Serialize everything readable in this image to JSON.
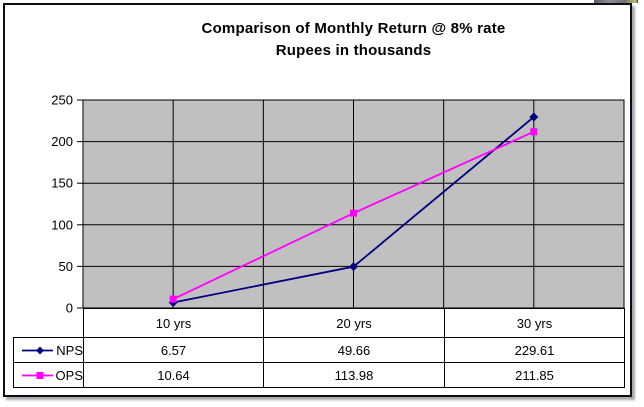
{
  "chart_data": {
    "type": "line",
    "title": "Comparison of Monthly Return @ 8% rate",
    "subtitle": "Rupees in thousands",
    "categories": [
      "10 yrs",
      "20 yrs",
      "30 yrs"
    ],
    "series": [
      {
        "name": "NPS",
        "values": [
          6.57,
          49.66,
          229.61
        ],
        "color": "#000080",
        "marker": "diamond"
      },
      {
        "name": "OPS",
        "values": [
          10.64,
          113.98,
          211.85
        ],
        "color": "#FF00FF",
        "marker": "square"
      }
    ],
    "xlabel": "",
    "ylabel": "",
    "ylim": [
      0,
      250
    ],
    "yticks": [
      0,
      50,
      100,
      150,
      200,
      250
    ],
    "grid": true,
    "gridline_color": "#000000",
    "plot_bg": "#C0C0C0",
    "vertical_gridline_divisions": 6,
    "legend_position": "data-table-left",
    "has_data_table": true
  }
}
